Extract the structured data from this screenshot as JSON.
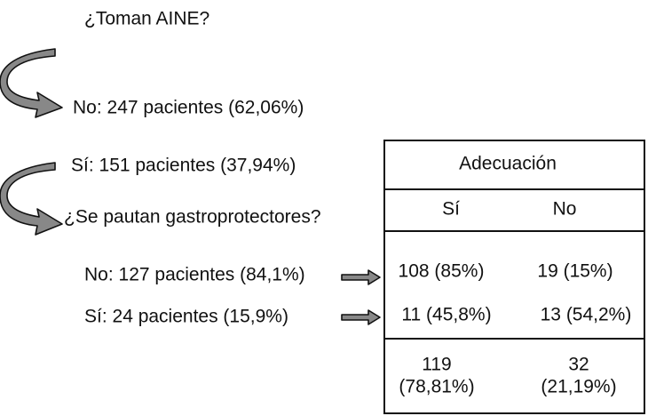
{
  "question1": "¿Toman AINE?",
  "answer1_no": "No: 247 pacientes (62,06%)",
  "answer1_si": "Sí: 151 pacientes (37,94%)",
  "question2": "¿Se pautan gastroprotectores?",
  "answer2_no": "No: 127 pacientes (84,1%)",
  "answer2_si": "Sí: 24 pacientes (15,9%)",
  "table": {
    "title": "Adecuación",
    "columns": [
      "Sí",
      "No"
    ],
    "rows": [
      [
        "108 (85%)",
        "19 (15%)"
      ],
      [
        "11 (45,8%)",
        "13 (54,2%)"
      ]
    ],
    "totals": [
      [
        "119",
        "(78,81%)"
      ],
      [
        "32",
        "(21,19%)"
      ]
    ]
  }
}
